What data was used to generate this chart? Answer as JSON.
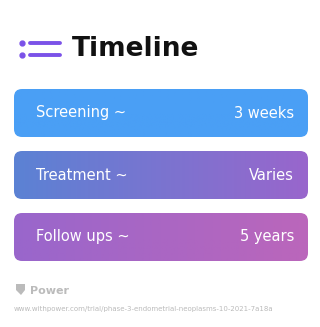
{
  "title": "Timeline",
  "background_color": "#ffffff",
  "rows": [
    {
      "label": "Screening ~",
      "value": "3 weeks",
      "color_left": "#4a9ff5",
      "color_right": "#4a9ff5"
    },
    {
      "label": "Treatment ~",
      "value": "Varies",
      "color_left": "#5b82d4",
      "color_right": "#9966cc"
    },
    {
      "label": "Follow ups ~",
      "value": "5 years",
      "color_left": "#9966cc",
      "color_right": "#bb66bb"
    }
  ],
  "title_icon_dot_color": "#7b52e8",
  "title_icon_line_color": "#7b52e8",
  "title_color": "#111111",
  "title_fontsize": 19,
  "label_fontsize": 10.5,
  "footer_text": "Power",
  "footer_url": "www.withpower.com/trial/phase-3-endometrial-neoplasms-10-2021-7a18a",
  "footer_color": "#bbbbbb",
  "footer_fontsize": 8,
  "footer_url_fontsize": 5
}
